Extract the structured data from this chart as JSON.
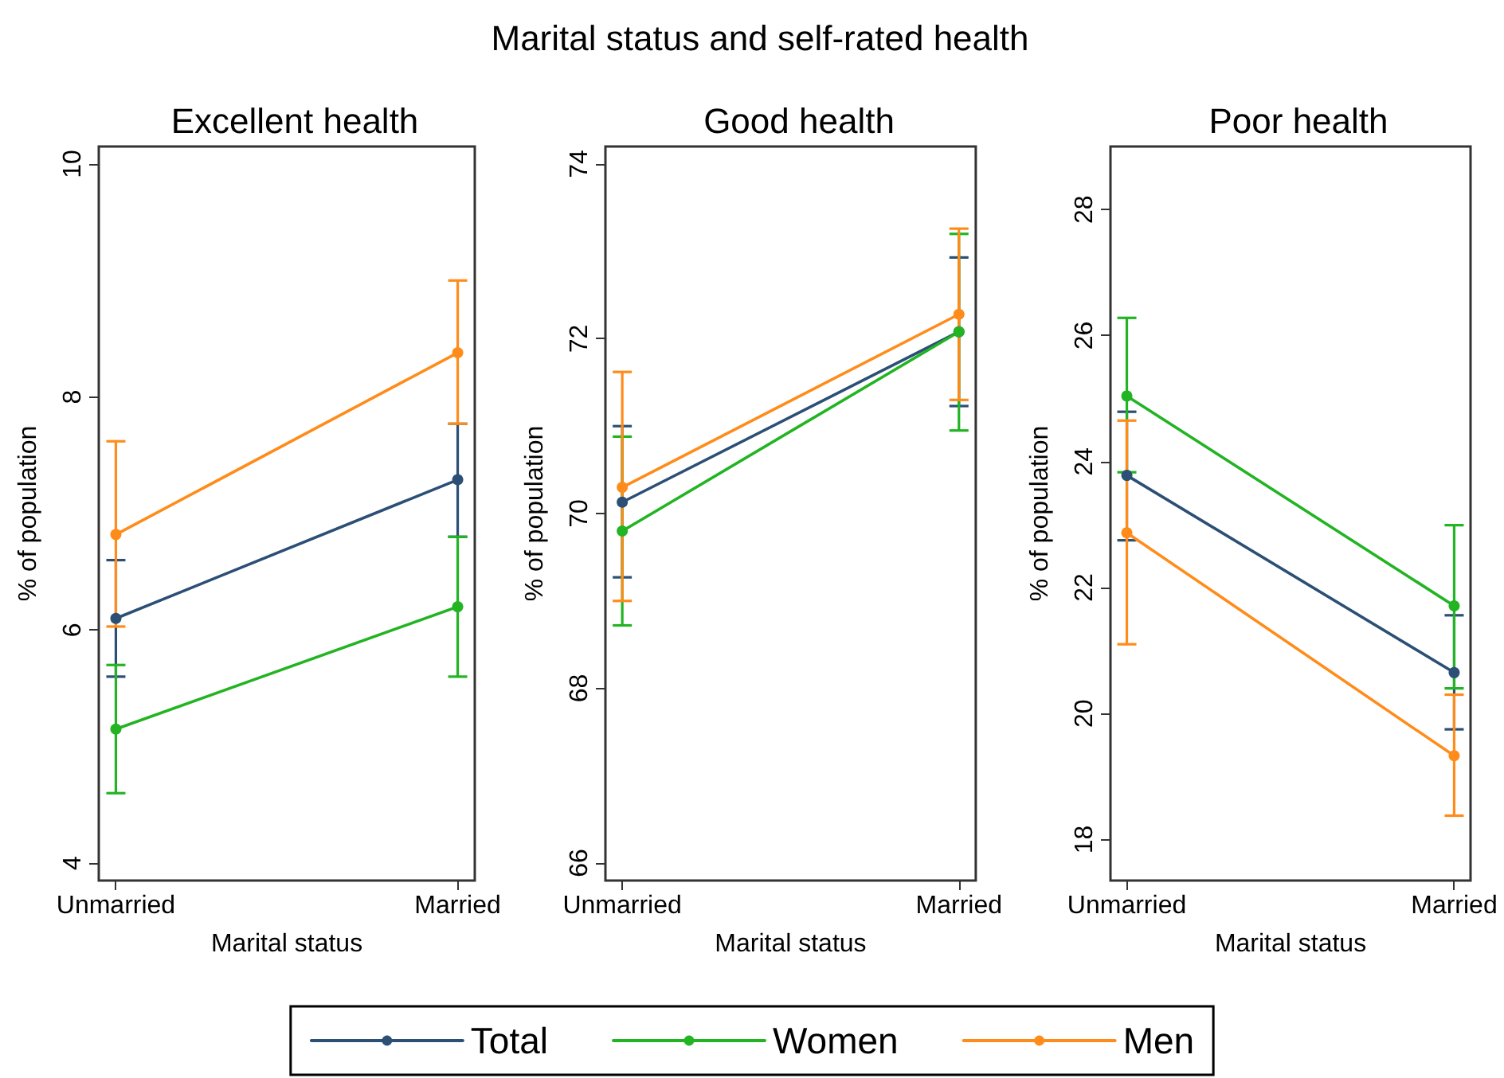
{
  "chart_data": [
    {
      "type": "line",
      "title": "Excellent health",
      "annotations": [
        "Marital status and self-rated health"
      ],
      "xlabel": "Marital status",
      "ylabel": "% of population",
      "categories": [
        "Unmarried",
        "Married"
      ],
      "ylim": [
        3.85,
        10.15
      ],
      "yticks": [
        4,
        6,
        8,
        10
      ],
      "grid": false,
      "legend": "bottom",
      "marker": "circle",
      "line_style": "solid",
      "series": [
        {
          "name": "Total",
          "color": "#2b4f75",
          "values": [
            6.1,
            7.29
          ],
          "errors": [
            [
              5.6,
              6.6
            ],
            [
              6.8,
              7.77
            ]
          ]
        },
        {
          "name": "Women",
          "color": "#22b422",
          "values": [
            5.15,
            6.2
          ],
          "errors": [
            [
              4.6,
              5.7
            ],
            [
              5.6,
              6.8
            ]
          ]
        },
        {
          "name": "Men",
          "color": "#ff8c1a",
          "values": [
            6.82,
            8.38
          ],
          "errors": [
            [
              6.03,
              7.62
            ],
            [
              7.77,
              9.0
            ]
          ]
        }
      ]
    },
    {
      "type": "line",
      "title": "Good health",
      "xlabel": "Marital status",
      "ylabel": "% of population",
      "categories": [
        "Unmarried",
        "Married"
      ],
      "ylim": [
        65.8,
        74.2
      ],
      "yticks": [
        66,
        68,
        70,
        72,
        74
      ],
      "grid": false,
      "marker": "circle",
      "line_style": "solid",
      "series": [
        {
          "color": "#2b4f75",
          "values": [
            70.13,
            72.08
          ],
          "errors": [
            [
              69.27,
              71.0
            ],
            [
              71.23,
              72.93
            ]
          ]
        },
        {
          "color": "#22b422",
          "values": [
            69.8,
            72.08
          ],
          "errors": [
            [
              68.72,
              70.88
            ],
            [
              70.95,
              73.2
            ]
          ]
        },
        {
          "color": "#ff8c1a",
          "values": [
            70.3,
            72.28
          ],
          "errors": [
            [
              69.0,
              71.62
            ],
            [
              71.3,
              73.26
            ]
          ]
        }
      ]
    },
    {
      "type": "line",
      "title": "Poor health",
      "xlabel": "Marital status",
      "ylabel": "% of population",
      "categories": [
        "Unmarried",
        "Married"
      ],
      "ylim": [
        17.35,
        29.0
      ],
      "yticks": [
        18,
        20,
        22,
        24,
        26,
        28
      ],
      "grid": false,
      "marker": "circle",
      "line_style": "solid",
      "series": [
        {
          "color": "#2b4f75",
          "values": [
            23.78,
            20.65
          ],
          "errors": [
            [
              22.75,
              24.79
            ],
            [
              19.75,
              21.56
            ]
          ]
        },
        {
          "color": "#22b422",
          "values": [
            25.04,
            21.71
          ],
          "errors": [
            [
              23.83,
              26.28
            ],
            [
              20.4,
              22.99
            ]
          ]
        },
        {
          "color": "#ff8c1a",
          "values": [
            22.87,
            19.33
          ],
          "errors": [
            [
              21.1,
              24.65
            ],
            [
              18.38,
              20.3
            ]
          ]
        }
      ]
    }
  ]
}
